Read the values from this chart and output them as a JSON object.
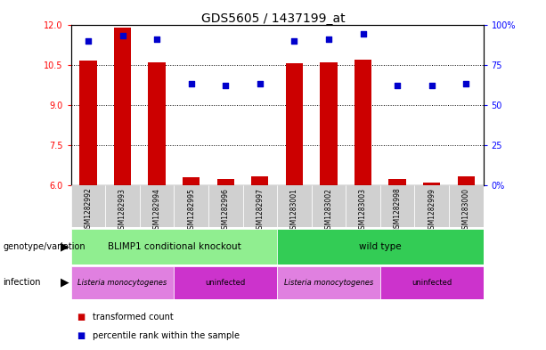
{
  "title": "GDS5605 / 1437199_at",
  "samples": [
    "GSM1282992",
    "GSM1282993",
    "GSM1282994",
    "GSM1282995",
    "GSM1282996",
    "GSM1282997",
    "GSM1283001",
    "GSM1283002",
    "GSM1283003",
    "GSM1282998",
    "GSM1282999",
    "GSM1283000"
  ],
  "transformed_counts": [
    10.65,
    11.9,
    10.6,
    6.3,
    6.25,
    6.35,
    10.55,
    10.6,
    10.7,
    6.25,
    6.1,
    6.35
  ],
  "percentile_ranks": [
    90,
    93,
    91,
    63,
    62,
    63,
    90,
    91,
    94,
    62,
    62,
    63
  ],
  "ylim_left": [
    6,
    12
  ],
  "ylim_right": [
    0,
    100
  ],
  "yticks_left": [
    6,
    7.5,
    9,
    10.5,
    12
  ],
  "yticks_right": [
    0,
    25,
    50,
    75,
    100
  ],
  "right_tick_labels": [
    "0%",
    "25",
    "50",
    "75",
    "100%"
  ],
  "bar_color": "#cc0000",
  "dot_color": "#0000cc",
  "genotype_groups": [
    {
      "label": "BLIMP1 conditional knockout",
      "start": 0,
      "end": 6,
      "color": "#90ee90"
    },
    {
      "label": "wild type",
      "start": 6,
      "end": 12,
      "color": "#33cc55"
    }
  ],
  "infection_groups": [
    {
      "label": "Listeria monocytogenes",
      "start": 0,
      "end": 3,
      "color": "#e080e0"
    },
    {
      "label": "uninfected",
      "start": 3,
      "end": 6,
      "color": "#cc33cc"
    },
    {
      "label": "Listeria monocytogenes",
      "start": 6,
      "end": 9,
      "color": "#e080e0"
    },
    {
      "label": "uninfected",
      "start": 9,
      "end": 12,
      "color": "#cc33cc"
    }
  ],
  "genotype_label": "genotype/variation",
  "infection_label": "infection",
  "legend_items": [
    "transformed count",
    "percentile rank within the sample"
  ],
  "row_bg_color": "#d0d0d0",
  "separator_color": "#aaaaaa"
}
